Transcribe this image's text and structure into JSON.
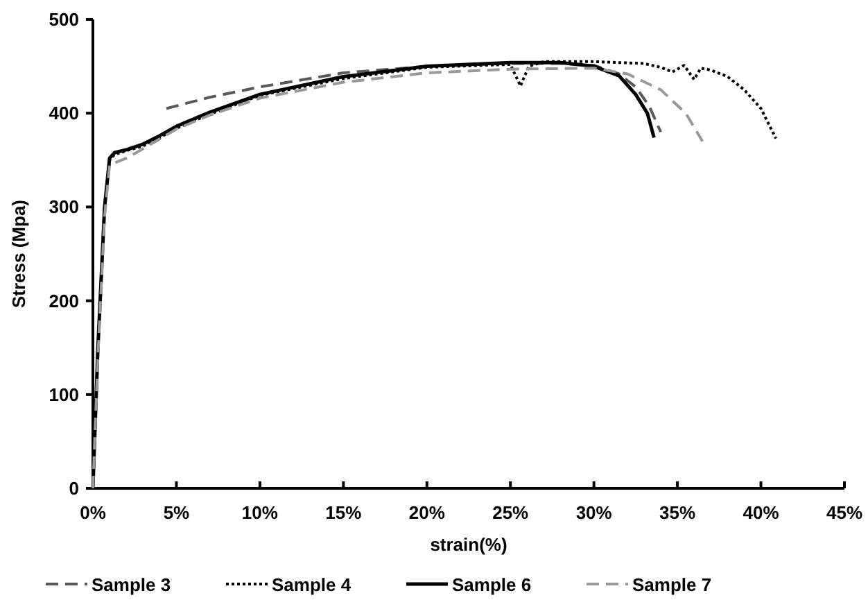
{
  "chart_data": {
    "type": "line",
    "xlabel": "strain(%)",
    "ylabel": "Stress (Mpa)",
    "xlim": [
      0,
      45
    ],
    "xticks": [
      {
        "value": 0,
        "label": "0%"
      },
      {
        "value": 5,
        "label": "5%"
      },
      {
        "value": 10,
        "label": "10%"
      },
      {
        "value": 15,
        "label": "15%"
      },
      {
        "value": 20,
        "label": "20%"
      },
      {
        "value": 25,
        "label": "25%"
      },
      {
        "value": 30,
        "label": "30%"
      },
      {
        "value": 35,
        "label": "35%"
      },
      {
        "value": 40,
        "label": "40%"
      },
      {
        "value": 45,
        "label": "45%"
      }
    ],
    "ylim": [
      0,
      500
    ],
    "yticks": [
      0,
      100,
      200,
      300,
      400,
      500
    ],
    "grid": false,
    "legend": "bottom",
    "series": [
      {
        "name": "Sample 3",
        "color": "#595959",
        "line_style": "dashed",
        "x": [
          4.4,
          7,
          10,
          15,
          20,
          25,
          28,
          30,
          31.5,
          32.5,
          33.3,
          34
        ],
        "values": [
          405,
          417,
          428,
          443,
          450,
          453,
          453,
          451,
          442,
          428,
          408,
          380
        ]
      },
      {
        "name": "Sample 4",
        "color": "#000000",
        "line_style": "dotted",
        "x": [
          0,
          0.3,
          0.7,
          1,
          1.3,
          2,
          3,
          4,
          5,
          7,
          10,
          15,
          20,
          25,
          25.6,
          26.1,
          27,
          30,
          33,
          34,
          34.7,
          35.4,
          36,
          36.4,
          37,
          38,
          39,
          40,
          40.9
        ],
        "values": [
          0,
          150,
          300,
          350,
          356,
          360,
          365,
          374,
          384,
          399,
          419,
          437,
          449,
          452,
          429,
          450,
          455,
          455,
          453,
          449,
          444,
          451,
          436,
          448,
          446,
          439,
          425,
          405,
          373
        ]
      },
      {
        "name": "Sample 6",
        "color": "#000000",
        "line_style": "solid",
        "x": [
          0,
          0.3,
          0.7,
          1,
          1.3,
          2,
          3,
          4,
          5,
          7,
          10,
          15,
          20,
          25,
          28,
          30,
          31.5,
          32.5,
          33.2,
          33.6
        ],
        "values": [
          0,
          150,
          300,
          352,
          358,
          361,
          367,
          376,
          386,
          401,
          420,
          439,
          450,
          454,
          454,
          450,
          440,
          420,
          400,
          374
        ]
      },
      {
        "name": "Sample 7",
        "color": "#999999",
        "line_style": "dashed",
        "x": [
          0,
          0.3,
          0.7,
          1,
          2,
          3,
          5,
          7,
          10,
          15,
          20,
          25,
          30,
          32,
          34,
          35.5,
          36.5
        ],
        "values": [
          0,
          140,
          290,
          345,
          352,
          362,
          383,
          398,
          416,
          433,
          443,
          447,
          448,
          442,
          425,
          400,
          370
        ]
      }
    ]
  }
}
